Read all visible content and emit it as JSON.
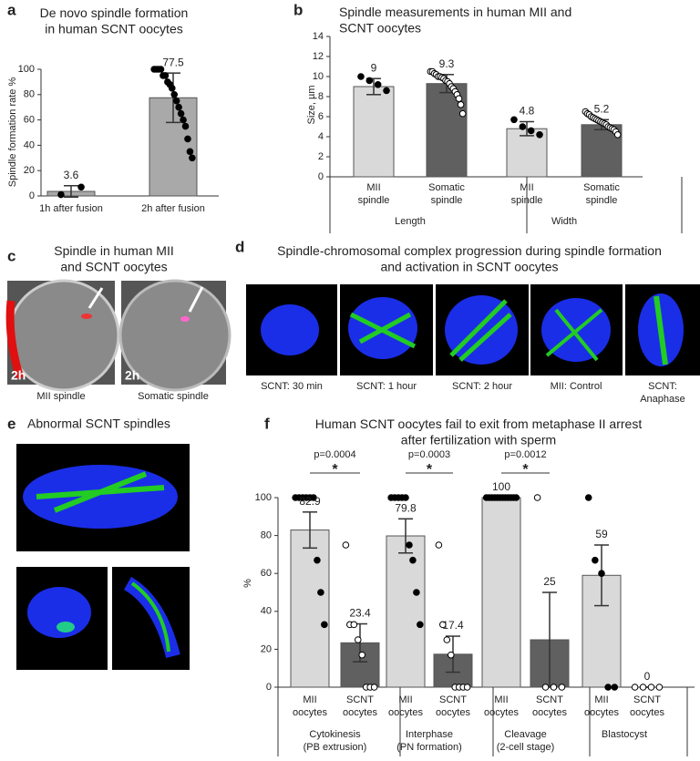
{
  "chart_data": [
    {
      "type": "bar",
      "panel": "a",
      "title": "De novo spindle formation\nin human SCNT oocytes",
      "y_label": "Spindle formation rate %",
      "categories": [
        "1h after fusion",
        "2h after fusion"
      ],
      "values": [
        3.6,
        77.5
      ],
      "errors": [
        4.5,
        19.5
      ],
      "colors": [
        "#a9a9a9",
        "#a9a9a9"
      ],
      "point_fills": [
        "#000000",
        "#000000"
      ],
      "points": [
        [
          1,
          7
        ],
        [
          100,
          100,
          100,
          100,
          95,
          95,
          90,
          88,
          85,
          80,
          75,
          70,
          65,
          60,
          55,
          45,
          35,
          30
        ]
      ],
      "ylim": [
        0,
        100
      ],
      "yticks": [
        0,
        20,
        40,
        60,
        80,
        100
      ]
    },
    {
      "type": "bar",
      "panel": "b",
      "title": "Spindle measurements in human MII and\nSCNT oocytes",
      "y_label": "Size, µm",
      "categories": [
        "MII\nspindle",
        "Somatic\nspindle",
        "MII\nspindle",
        "Somatic\nspindle"
      ],
      "groups": [
        "Length",
        "Width"
      ],
      "values": [
        9,
        9.3,
        4.8,
        5.2
      ],
      "errors": [
        0.8,
        0.9,
        0.7,
        0.5
      ],
      "colors": [
        "#d9d9d9",
        "#606060",
        "#d9d9d9",
        "#606060"
      ],
      "point_fills": [
        "#000000",
        "#ffffff",
        "#000000",
        "#ffffff"
      ],
      "points": [
        [
          10,
          9.6,
          9.2,
          8.6
        ],
        [
          10.5,
          10.5,
          10.3,
          10.2,
          10,
          10,
          9.9,
          9.8,
          9.6,
          9.5,
          9.3,
          9,
          8.8,
          8.5,
          8.2,
          7.8,
          7.2,
          6.3
        ],
        [
          5.7,
          5,
          4.6,
          4.2
        ],
        [
          6.5,
          6.3,
          6.2,
          6,
          5.9,
          5.8,
          5.7,
          5.6,
          5.5,
          5.4,
          5.3,
          5.2,
          5,
          4.9,
          4.8,
          4.7,
          4.5,
          4.2
        ]
      ],
      "ylim": [
        0,
        14
      ],
      "yticks": [
        0,
        2,
        4,
        6,
        8,
        10,
        12,
        14
      ]
    },
    {
      "type": "bar",
      "panel": "f",
      "title": "Human SCNT oocytes fail to exit from metaphase II arrest\nafter fertilization with sperm",
      "y_label": "%",
      "categories": [
        "MII\noocytes",
        "SCNT\noocytes",
        "MII\noocytes",
        "SCNT\noocytes",
        "MII\noocytes",
        "SCNT\noocytes",
        "MII\noocytes",
        "SCNT\noocytes"
      ],
      "groups": [
        "Cytokinesis\n(PB extrusion)",
        "Interphase\n(PN formation)",
        "Cleavage\n(2-cell stage)",
        "Blastocyst"
      ],
      "values": [
        82.9,
        23.4,
        79.8,
        17.4,
        100,
        25,
        59,
        0
      ],
      "errors": [
        9.5,
        10,
        9,
        9.5,
        0,
        25,
        16,
        0
      ],
      "colors": [
        "#d9d9d9",
        "#606060",
        "#d9d9d9",
        "#606060",
        "#d9d9d9",
        "#606060",
        "#d9d9d9",
        "#606060"
      ],
      "point_fills": [
        "#000000",
        "#ffffff",
        "#000000",
        "#ffffff",
        "#000000",
        "#ffffff",
        "#000000",
        "#ffffff"
      ],
      "points": [
        [
          100,
          100,
          100,
          100,
          100,
          100,
          67,
          50,
          33
        ],
        [
          75,
          33,
          33,
          25,
          17,
          0,
          0,
          0
        ],
        [
          100,
          100,
          100,
          100,
          100,
          75,
          67,
          50,
          33
        ],
        [
          75,
          33,
          25,
          17,
          0,
          0,
          0,
          0
        ],
        [
          100,
          100,
          100,
          100,
          100,
          100,
          100,
          100,
          100,
          100,
          100,
          100
        ],
        [
          100,
          0,
          0,
          0
        ],
        [
          100,
          67,
          60,
          0,
          0
        ],
        [
          0,
          0,
          0,
          0
        ]
      ],
      "significance": [
        {
          "p": "p=0.0004",
          "mark": "*"
        },
        {
          "p": "p=0.0003",
          "mark": "*"
        },
        {
          "p": "p=0.0012",
          "mark": "*"
        }
      ],
      "ylim": [
        0,
        100
      ],
      "yticks": [
        0,
        20,
        40,
        60,
        80,
        100
      ]
    }
  ],
  "panels": {
    "c": {
      "letter": "c",
      "title": "Spindle in human MII\nand SCNT oocytes",
      "time_labels": [
        "2h",
        "2h"
      ],
      "labels": [
        "MII spindle",
        "Somatic spindle"
      ]
    },
    "d": {
      "letter": "d",
      "title": "Spindle-chromosomal complex progression during spindle formation\nand activation in SCNT oocytes",
      "labels": [
        "SCNT: 30 min",
        "SCNT: 1 hour",
        "SCNT: 2 hour",
        "MII: Control",
        "SCNT:\nAnaphase"
      ]
    },
    "e": {
      "letter": "e",
      "title": "Abnormal SCNT spindles"
    }
  }
}
